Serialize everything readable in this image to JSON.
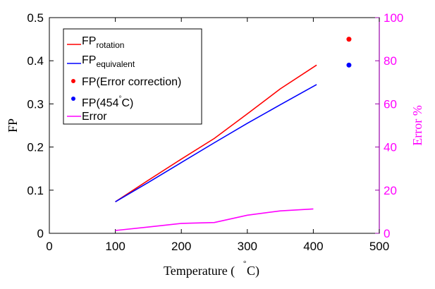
{
  "chart_data": {
    "type": "line",
    "x_axis": {
      "label_main": "Temperature (",
      "label_degree": "°",
      "label_unit": "C)",
      "range": [
        0,
        500
      ],
      "ticks": [
        0,
        100,
        200,
        300,
        400,
        500
      ]
    },
    "y_axis_left": {
      "label": "FP",
      "range": [
        0,
        0.5
      ],
      "ticks": [
        0,
        0.1,
        0.2,
        0.3,
        0.4,
        0.5
      ]
    },
    "y_axis_right": {
      "label": "Error %",
      "range": [
        0,
        100
      ],
      "ticks": [
        0,
        20,
        40,
        60,
        80,
        100
      ],
      "color": "#ff00ff"
    },
    "series": [
      {
        "id": "fp-rotation",
        "name_main": "FP",
        "name_sub": "rotation",
        "color": "#ff0000",
        "kind": "line",
        "axis": "left",
        "x": [
          100,
          150,
          200,
          250,
          300,
          350,
          405
        ],
        "y": [
          0.073,
          0.123,
          0.172,
          0.22,
          0.277,
          0.335,
          0.39
        ]
      },
      {
        "id": "fp-equivalent",
        "name_main": "FP",
        "name_sub": "equivalent",
        "color": "#0000ff",
        "kind": "line",
        "axis": "left",
        "x": [
          100,
          150,
          200,
          250,
          300,
          350,
          405
        ],
        "y": [
          0.073,
          0.118,
          0.164,
          0.21,
          0.255,
          0.298,
          0.345
        ]
      },
      {
        "id": "fp-error-correction",
        "name_main": "FP(Error correction)",
        "name_sub": "",
        "color": "#ff0000",
        "kind": "point",
        "axis": "left",
        "x": [
          454
        ],
        "y": [
          0.45
        ]
      },
      {
        "id": "fp-454",
        "name_main": "FP(454",
        "name_degree": "°",
        "name_tail": "C)",
        "name_sub": "",
        "color": "#0000ff",
        "kind": "point",
        "axis": "left",
        "x": [
          454
        ],
        "y": [
          0.39
        ]
      },
      {
        "id": "error",
        "name_main": "Error",
        "name_sub": "",
        "color": "#ff00ff",
        "kind": "line",
        "axis": "right",
        "x": [
          100,
          150,
          200,
          250,
          300,
          350,
          400
        ],
        "y": [
          1.3,
          2.9,
          4.6,
          5.0,
          8.4,
          10.4,
          11.3
        ]
      }
    ]
  }
}
